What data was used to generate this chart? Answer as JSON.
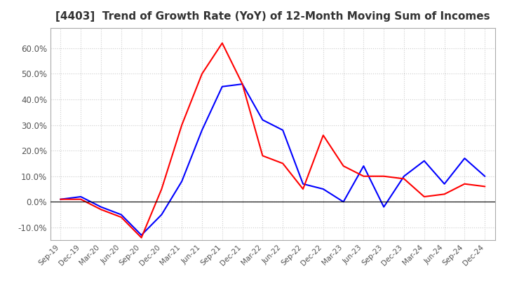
{
  "title": "[4403]  Trend of Growth Rate (YoY) of 12-Month Moving Sum of Incomes",
  "title_fontsize": 11,
  "background_color": "#ffffff",
  "grid_color": "#cccccc",
  "x_labels": [
    "Sep-19",
    "Dec-19",
    "Mar-20",
    "Jun-20",
    "Sep-20",
    "Dec-20",
    "Mar-21",
    "Jun-21",
    "Sep-21",
    "Dec-21",
    "Mar-22",
    "Jun-22",
    "Sep-22",
    "Dec-22",
    "Mar-23",
    "Jun-23",
    "Sep-23",
    "Dec-23",
    "Mar-24",
    "Jun-24",
    "Sep-24",
    "Dec-24"
  ],
  "ordinary_income": [
    0.01,
    0.02,
    -0.02,
    -0.05,
    -0.13,
    -0.05,
    0.08,
    0.28,
    0.45,
    0.46,
    0.32,
    0.28,
    0.07,
    0.05,
    0.0,
    0.14,
    -0.02,
    0.1,
    0.16,
    0.07,
    0.17,
    0.1
  ],
  "net_income": [
    0.01,
    0.01,
    -0.03,
    -0.06,
    -0.14,
    0.05,
    0.3,
    0.5,
    0.62,
    0.46,
    0.18,
    0.15,
    0.05,
    0.26,
    0.14,
    0.1,
    0.1,
    0.09,
    0.02,
    0.03,
    0.07,
    0.06
  ],
  "ordinary_color": "#0000ff",
  "net_color": "#ff0000",
  "ylim": [
    -0.15,
    0.68
  ],
  "yticks": [
    -0.1,
    0.0,
    0.1,
    0.2,
    0.3,
    0.4,
    0.5,
    0.6
  ]
}
